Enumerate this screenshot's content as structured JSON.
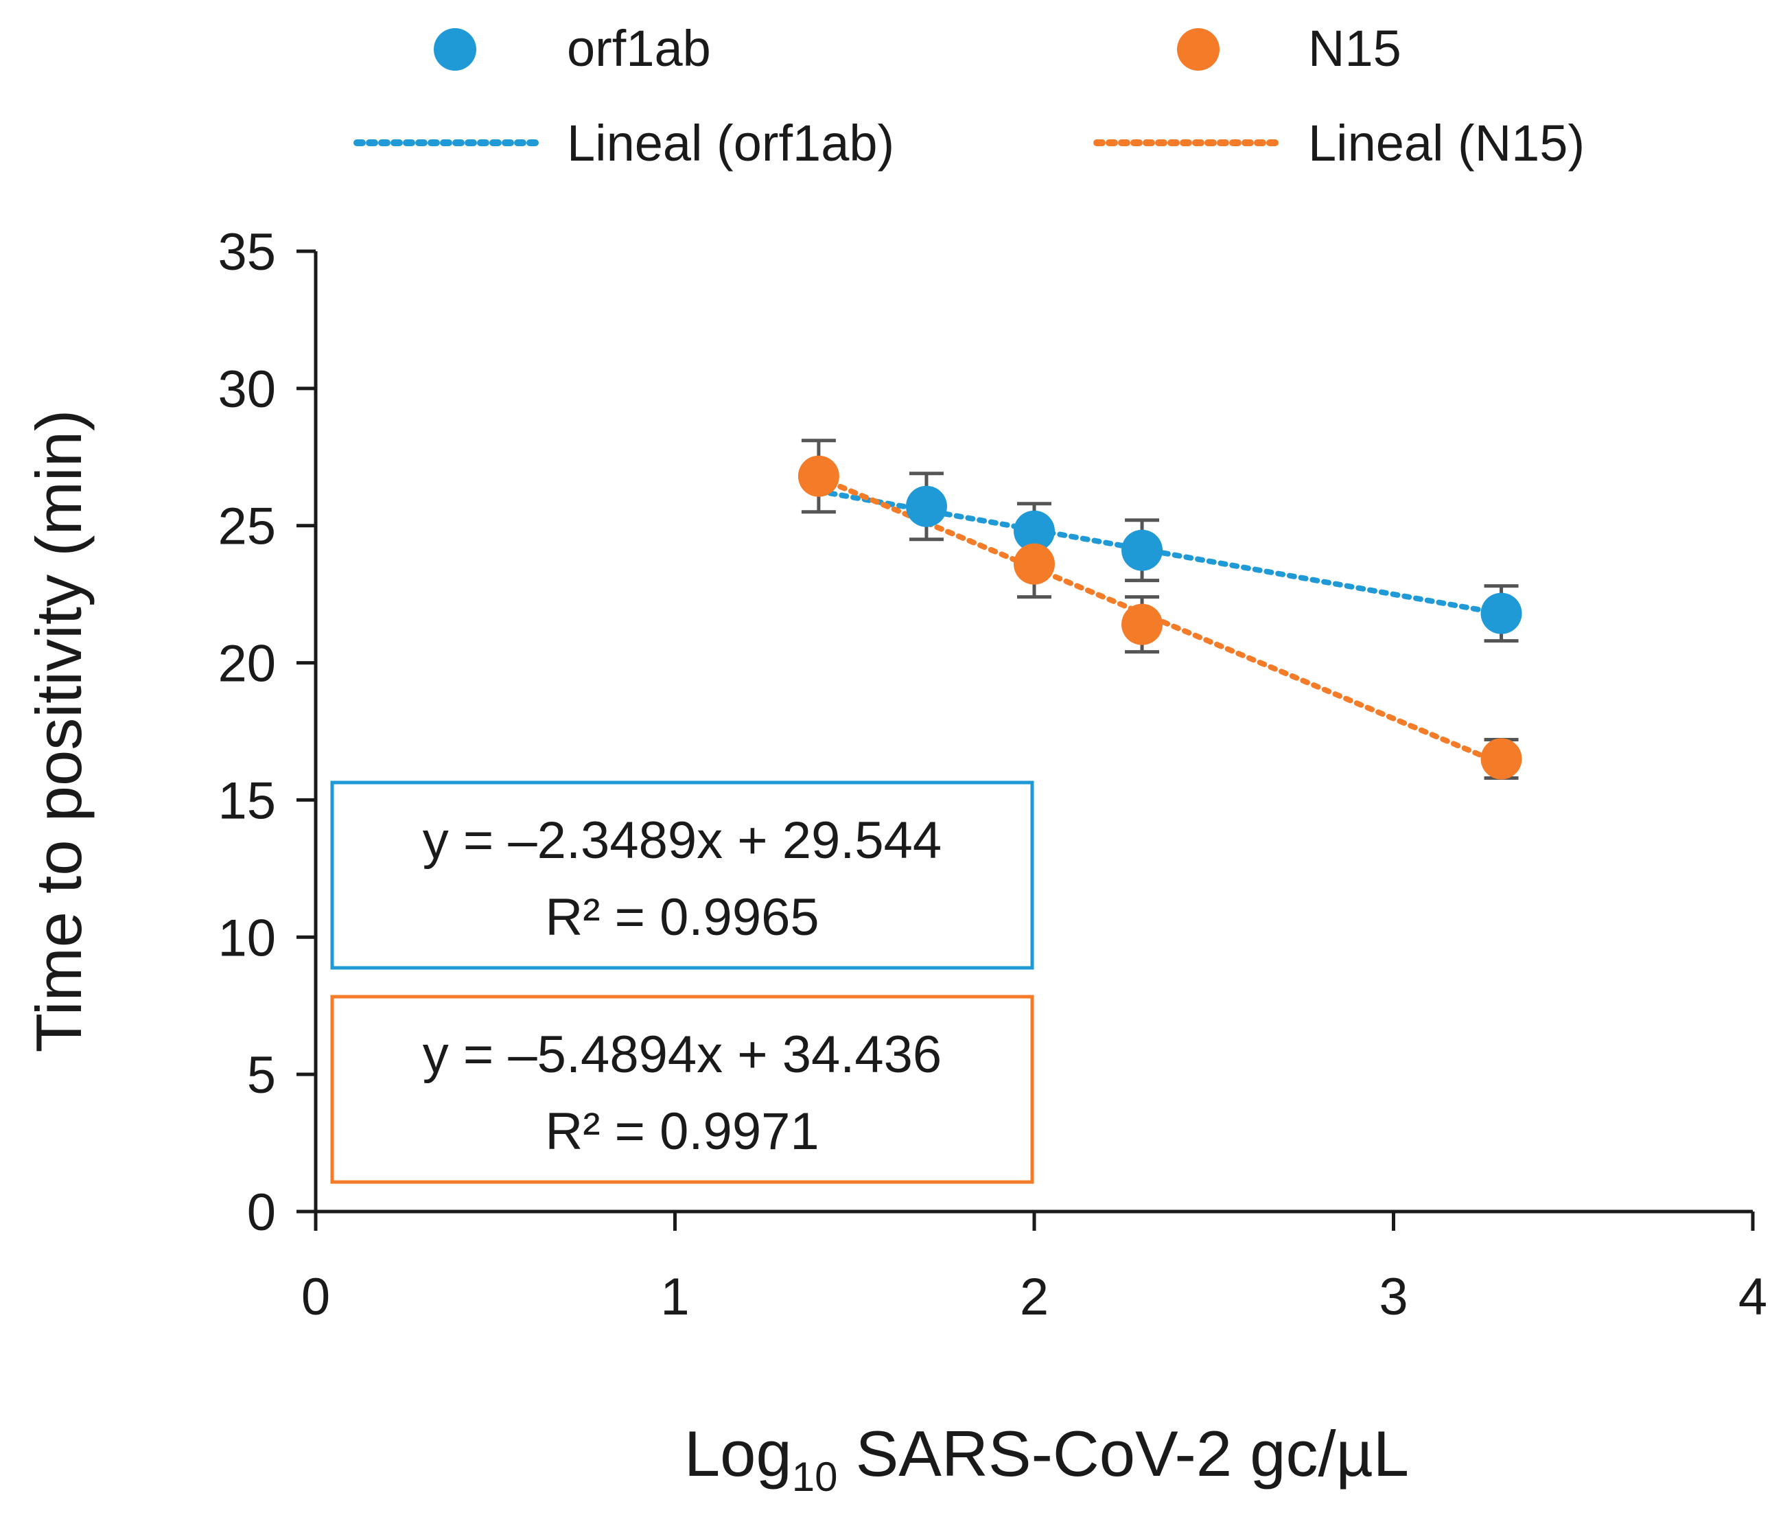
{
  "chart_data": {
    "type": "scatter",
    "title": "",
    "xlabel": {
      "main": "Log",
      "sub": "10",
      "rest": " SARS-CoV-2 gc/µL"
    },
    "ylabel": "Time to positivity (min)",
    "xlim": [
      0,
      4
    ],
    "ylim": [
      0,
      35
    ],
    "x_ticks": [
      0,
      1,
      2,
      3,
      4
    ],
    "y_ticks": [
      0,
      5,
      10,
      15,
      20,
      25,
      30,
      35
    ],
    "grid": false,
    "legend_position": "top",
    "legend": [
      {
        "label": "orf1ab",
        "kind": "marker",
        "series": "orf1ab"
      },
      {
        "label": "N15",
        "kind": "marker",
        "series": "N15"
      },
      {
        "label": "Lineal (orf1ab)",
        "kind": "line",
        "series": "orf1ab"
      },
      {
        "label": "Lineal (N15)",
        "kind": "line",
        "series": "N15"
      }
    ],
    "series": [
      {
        "name": "orf1ab",
        "color": "#1f9ad6",
        "x": [
          1.7,
          2.0,
          2.3,
          3.3
        ],
        "y": [
          25.7,
          24.8,
          24.1,
          21.8
        ],
        "error": [
          1.2,
          1.0,
          1.1,
          1.0
        ],
        "trendline": {
          "slope": -2.3489,
          "intercept": 29.544,
          "x_range": [
            1.4,
            3.3
          ]
        },
        "equation": "y = –2.3489x + 29.544",
        "r_squared": "R² = 0.9965"
      },
      {
        "name": "N15",
        "color": "#f47c28",
        "x": [
          1.4,
          2.0,
          2.3,
          3.3
        ],
        "y": [
          26.8,
          23.6,
          21.4,
          16.5
        ],
        "error": [
          1.3,
          1.2,
          1.0,
          0.7
        ],
        "trendline": {
          "slope": -5.4894,
          "intercept": 34.436,
          "x_range": [
            1.4,
            3.3
          ]
        },
        "equation": "y = –5.4894x + 34.436",
        "r_squared": "R² = 0.9971"
      }
    ]
  }
}
